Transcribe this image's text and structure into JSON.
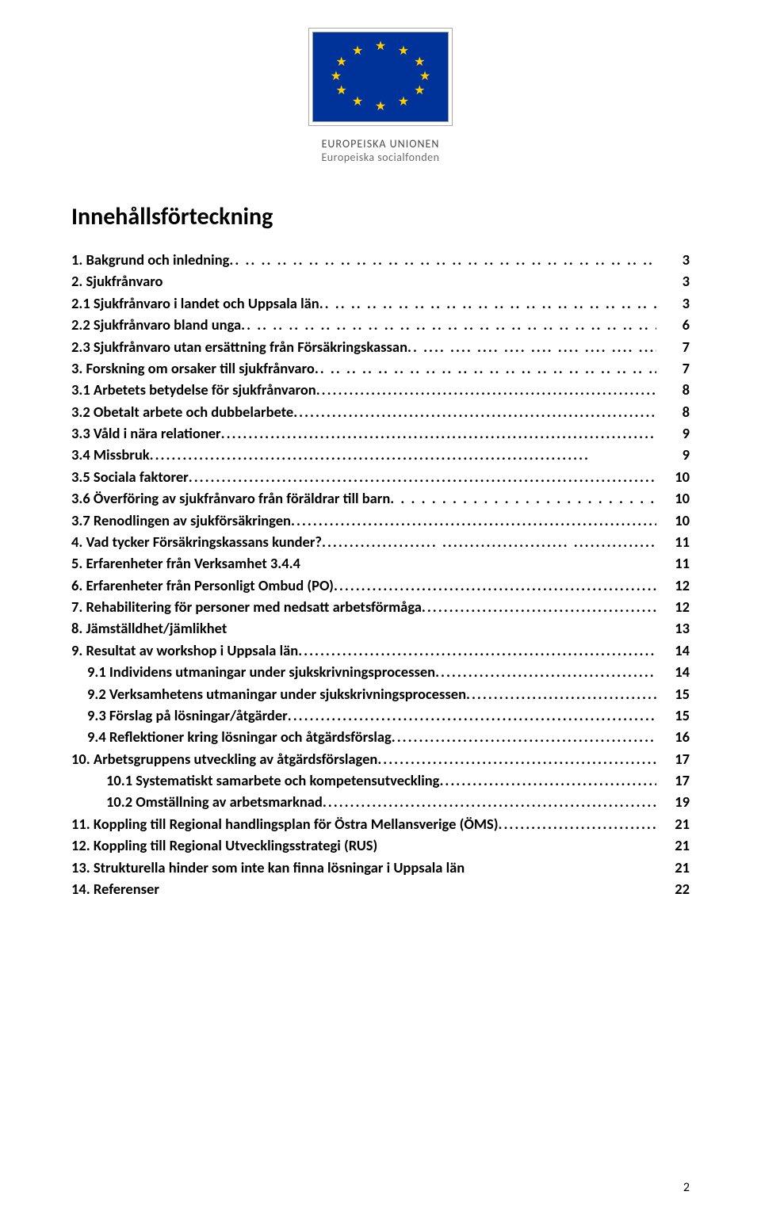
{
  "logo": {
    "line1": "EUROPEISKA UNIONEN",
    "line2": "Europeiska socialfonden",
    "flag_bg": "#003399",
    "star_color": "#FFCC00"
  },
  "title": "Innehållsförteckning",
  "page_number": "2",
  "entries": [
    {
      "label": "1.  Bakgrund och inledning",
      "page": "3",
      "indent": 0,
      "fill": ".. "
    },
    {
      "label": "2.  Sjukfrånvaro",
      "page": "3",
      "indent": 0,
      "fill": " "
    },
    {
      "label": "2.1 Sjukfrånvaro i landet och Uppsala län",
      "page": "3",
      "indent": 0,
      "fill": ".. "
    },
    {
      "label": "2.2 Sjukfrånvaro bland unga",
      "page": "6",
      "indent": 0,
      "fill": ".. "
    },
    {
      "label": "2.3 Sjukfrånvaro utan ersättning från Försäkringskassan",
      "page": "7",
      "indent": 0,
      "fill": ".. .."
    },
    {
      "label": "3.  Forskning om orsaker till sjukfrånvaro",
      "page": "7",
      "indent": 0,
      "fill": " .."
    },
    {
      "label": "3.1 Arbetets betydelse för sjukfrånvaron",
      "page": "8",
      "indent": 0,
      "fill": "."
    },
    {
      "label": "3.2 Obetalt arbete och dubbelarbete",
      "page": "8",
      "indent": 0,
      "fill": ".."
    },
    {
      "label": "3.3 Våld i nära relationer",
      "page": "9",
      "indent": 0,
      "fill": ".."
    },
    {
      "label": "3.4 Missbruk",
      "page": "9",
      "indent": 0,
      "fill": "."
    },
    {
      "label": "3.5 Sociala faktorer",
      "page": "10",
      "indent": 0,
      "fill": ".."
    },
    {
      "label": "3.6 Överföring av sjukfrånvaro från föräldrar till barn",
      "page": "10",
      "indent": 0,
      "fill": ". "
    },
    {
      "label": "3.7 Renodlingen av sjukförsäkringen",
      "page": "10",
      "indent": 0,
      "fill": ".."
    },
    {
      "label": "4.  Vad tycker Försäkringskassans kunder?",
      "page": "11",
      "indent": 0,
      "fill": "..................... .."
    },
    {
      "label": "5.  Erfarenheter från Verksamhet 3.4.4",
      "page": "11",
      "indent": 0,
      "fill": " "
    },
    {
      "label": "6.  Erfarenheter från Personligt Ombud (PO)",
      "page": "12",
      "indent": 0,
      "fill": ".."
    },
    {
      "label": "7.  Rehabilitering för personer med nedsatt arbetsförmåga",
      "page": "12",
      "indent": 0,
      "fill": ".."
    },
    {
      "label": "8.  Jämställdhet/jämlikhet",
      "page": "13",
      "indent": 0,
      "fill": " "
    },
    {
      "label": "9.  Resultat av workshop i Uppsala län",
      "page": "14",
      "indent": 0,
      "fill": "."
    },
    {
      "label": "9.1 Individens utmaningar under sjukskrivningsprocessen",
      "page": "14",
      "indent": 1,
      "fill": "."
    },
    {
      "label": "9.2 Verksamhetens utmaningar under sjukskrivningsprocessen",
      "page": "15",
      "indent": 1,
      "fill": "."
    },
    {
      "label": "9.3 Förslag på lösningar/åtgärder",
      "page": "15",
      "indent": 1,
      "fill": ".."
    },
    {
      "label": "9.4 Reflektioner kring lösningar och åtgärdsförslag",
      "page": "16",
      "indent": 1,
      "fill": ".."
    },
    {
      "label": "10.  Arbetsgruppens utveckling av åtgärdsförslagen",
      "page": "17",
      "indent": 0,
      "fill": "."
    },
    {
      "label": "10.1        Systematiskt samarbete och kompetensutveckling",
      "page": "17",
      "indent": 2,
      "fill": "."
    },
    {
      "label": "10.2        Omställning av arbetsmarknad",
      "page": "19",
      "indent": 2,
      "fill": ".."
    },
    {
      "label": "11. Koppling till Regional handlingsplan för Östra Mellansverige (ÖMS)",
      "page": "21",
      "indent": 0,
      "fill": ".."
    },
    {
      "label": "12. Koppling till Regional Utvecklingsstrategi (RUS)",
      "page": "21",
      "indent": 0,
      "fill": " "
    },
    {
      "label": "13. Strukturella hinder som inte kan finna lösningar i Uppsala län",
      "page": "21",
      "indent": 0,
      "fill": " "
    },
    {
      "label": "14. Referenser",
      "page": "22",
      "indent": 0,
      "fill": " "
    }
  ]
}
